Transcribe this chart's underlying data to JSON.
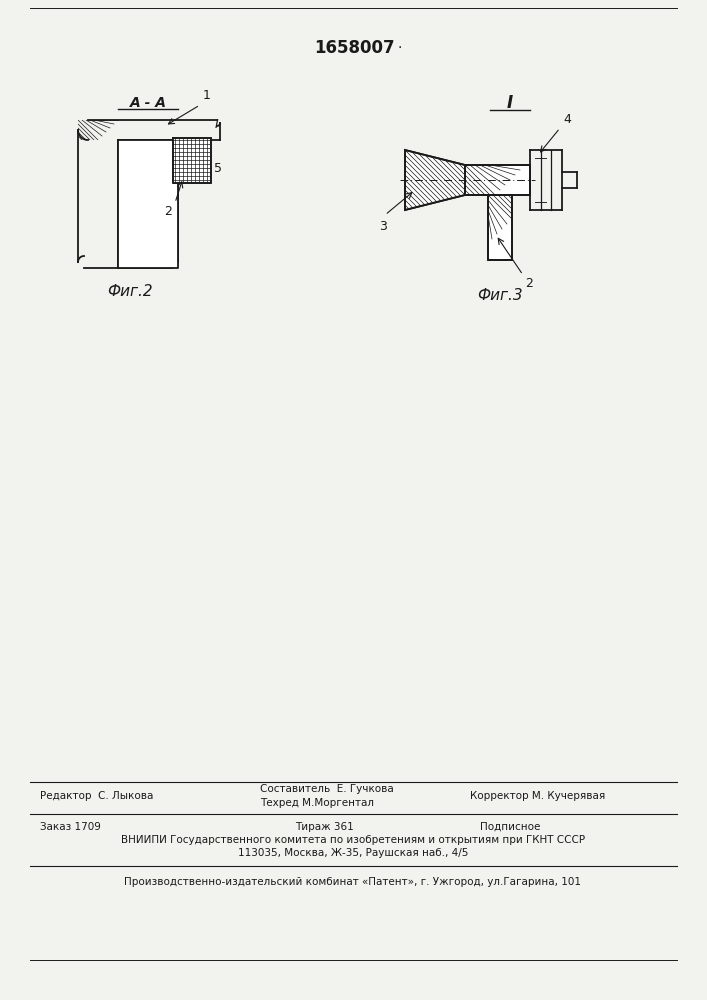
{
  "patent_number": "1658007",
  "fig2_label": "Фиг.2",
  "fig3_label": "Фиг.3",
  "section_label": "A - A",
  "view_label": "I",
  "bg_color": "#f2f2ee",
  "line_color": "#1a1a1a",
  "footer": {
    "editor": "Редактор  С. Лыкова",
    "composer": "Составитель  Е. Гучкова",
    "techred": "Техред М.Моргентал",
    "corrector": "Корректор М. Кучерявая",
    "order": "Заказ 1709",
    "tirazh": "Тираж 361",
    "podpisnoe": "Подписное",
    "vniiipi": "ВНИИПИ Государственного комитета по изобретениям и открытиям при ГКНТ СССР",
    "address": "113035, Москва, Ж-35, Раушская наб., 4/5",
    "publisher": "Производственно-издательский комбинат «Патент», г. Ужгород, ул.Гагарина, 101"
  }
}
